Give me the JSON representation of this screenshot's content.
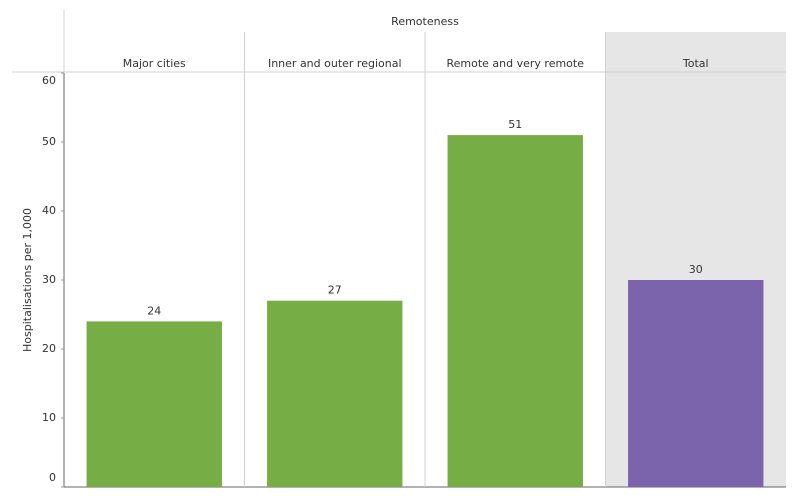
{
  "chart_data": {
    "type": "bar",
    "header": "Remoteness",
    "ylabel": "Hospitalisations per 1,000",
    "categories": [
      "Major cities",
      "Inner and outer regional",
      "Remote and very remote",
      "Total"
    ],
    "values": [
      24,
      27,
      51,
      30
    ],
    "colors": [
      "#77ad45",
      "#77ad45",
      "#77ad45",
      "#7b64ab"
    ],
    "shade_last_category": true,
    "ylim": [
      0,
      60
    ],
    "yticks": [
      0,
      10,
      20,
      30,
      40,
      50,
      60
    ]
  }
}
